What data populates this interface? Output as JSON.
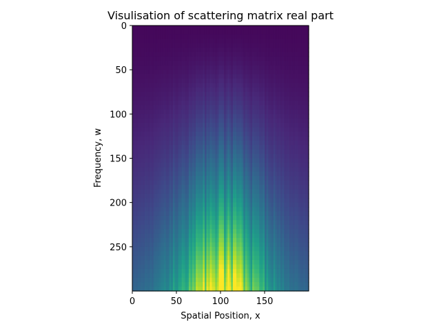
{
  "chart_data": {
    "type": "heatmap",
    "title": "Visulisation of scattering matrix real part",
    "xlabel": "Spatial Position, x",
    "ylabel": "Frequency, w",
    "x_range": [
      0,
      200
    ],
    "y_range": [
      0,
      300
    ],
    "y_inverted": true,
    "x_ticks": [
      0,
      50,
      100,
      150
    ],
    "y_ticks": [
      0,
      50,
      100,
      150,
      200,
      250
    ],
    "colormap": "viridis",
    "grid": false,
    "value_range": [
      0,
      1
    ],
    "intensity_profile": {
      "description_peak_x": 102,
      "column_spread": 55,
      "max_value_at_bottom_center": 1.0,
      "min_value_at_top": 0.02
    },
    "colorscale": [
      "#440154",
      "#482878",
      "#3e4989",
      "#31688e",
      "#26828e",
      "#1f9e89",
      "#35b779",
      "#6ece58",
      "#b5de2b",
      "#fde725"
    ]
  }
}
